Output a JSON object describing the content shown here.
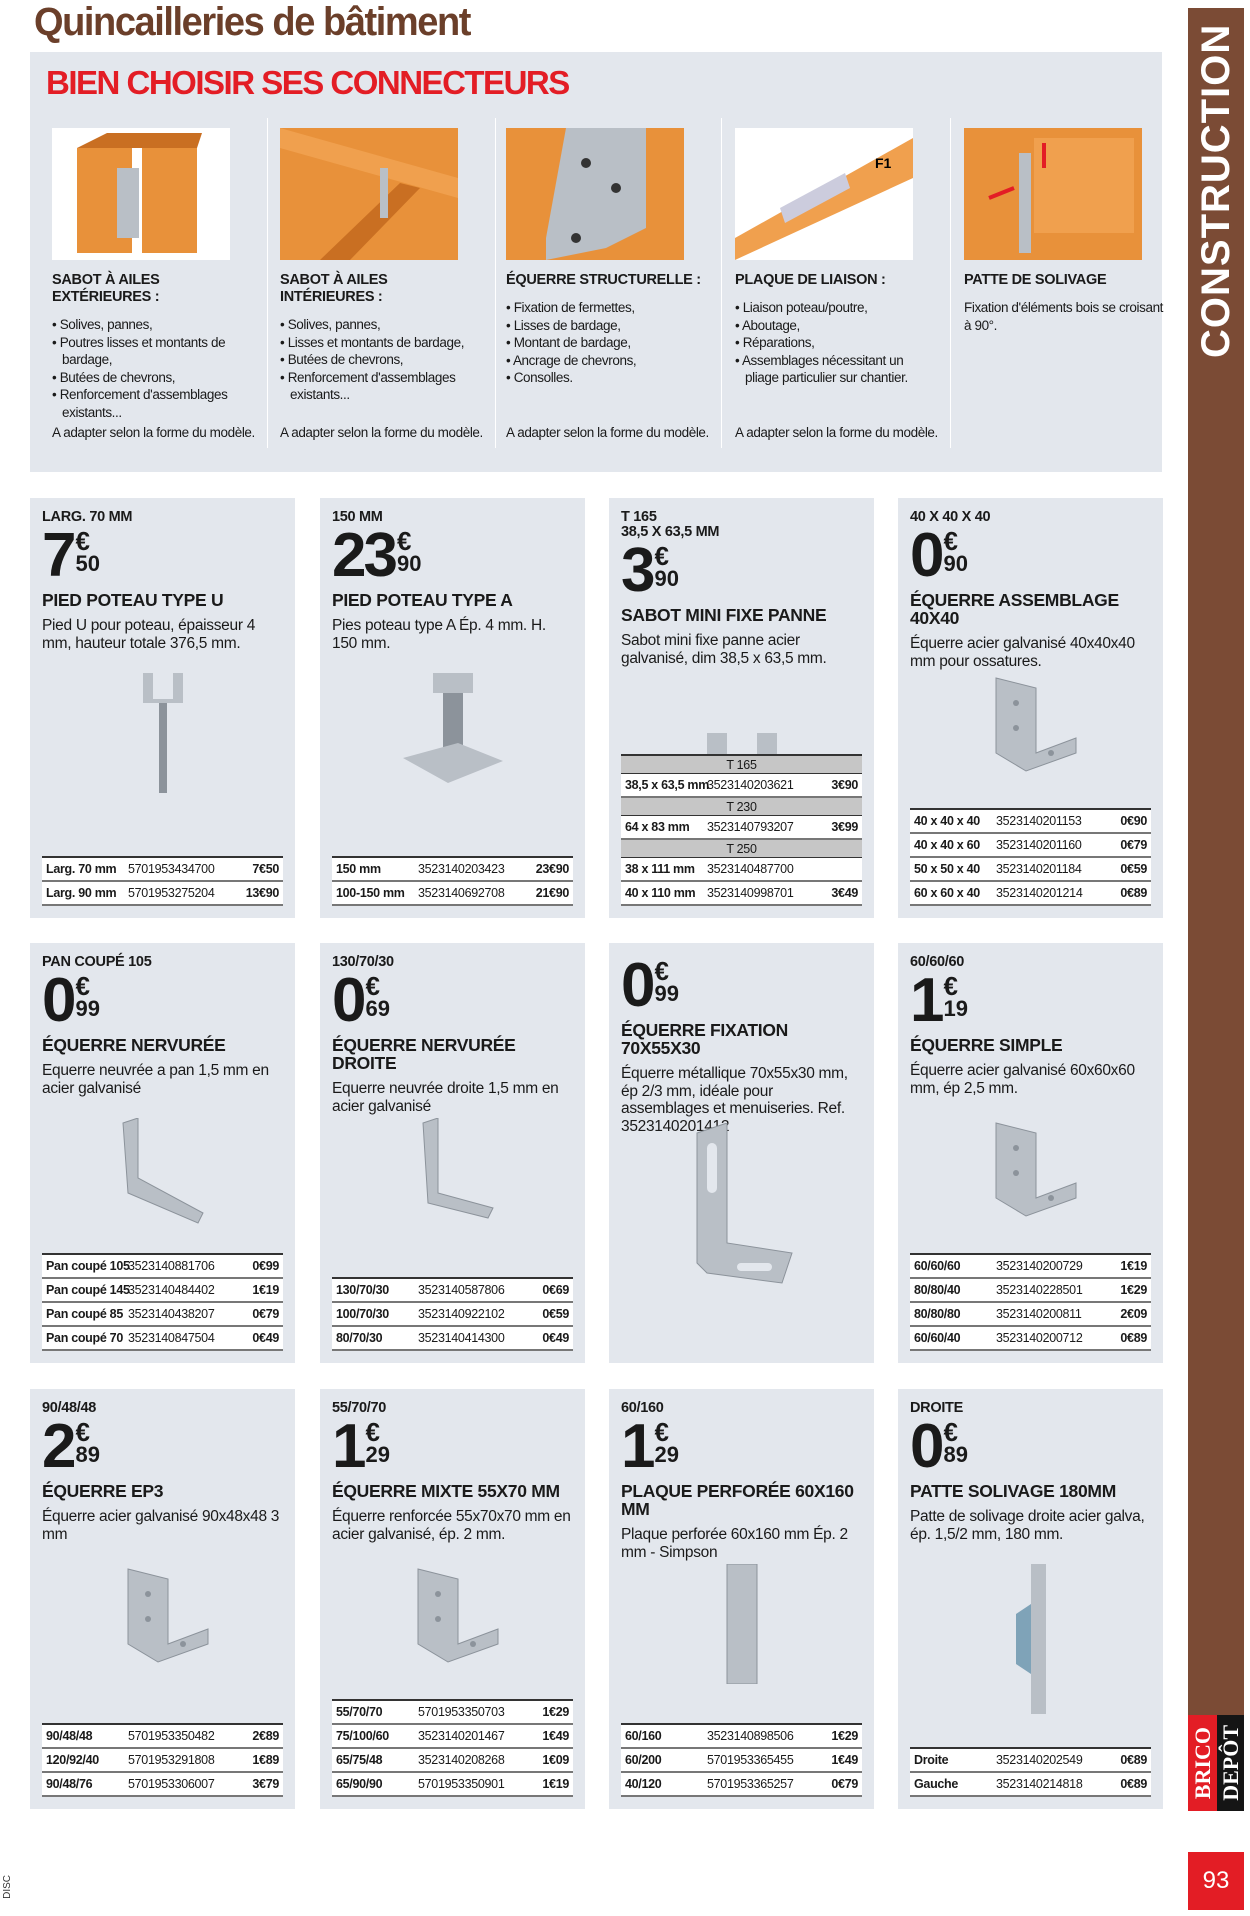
{
  "page": {
    "title": "Quincailleries de bâtiment",
    "section": "CONSTRUCTION",
    "page_number": "93",
    "footer_code": "DISC",
    "brand": {
      "top": "BRICO",
      "bottom": "DEPÔT",
      "colors": {
        "red": "#e31d25",
        "black": "#151515"
      }
    },
    "colors": {
      "brown": "#7b4b35",
      "panel": "#e3e7ed",
      "accent_red": "#e31d25"
    }
  },
  "guide": {
    "title": "BIEN CHOISIR SES CONNECTEURS",
    "columns": [
      {
        "title": "Sabot à ailes extérieures :",
        "items": [
          "Solives, pannes,",
          "Poutres lisses et montants de bardage,",
          "Butées de chevrons,",
          "Renforcement d'assemblages existants..."
        ],
        "note": "A adapter selon la forme du modèle."
      },
      {
        "title": "Sabot à ailes intérieures :",
        "items": [
          "Solives, pannes,",
          "Lisses et montants de bardage,",
          "Butées de chevrons,",
          "Renforcement d'assemblages existants..."
        ],
        "note": "A adapter selon la forme du modèle."
      },
      {
        "title": "Équerre structurelle :",
        "items": [
          "Fixation de fermettes,",
          "Lisses de bardage,",
          "Montant de bardage,",
          "Ancrage de chevrons,",
          "Consolles."
        ],
        "note": "A adapter selon la forme du modèle."
      },
      {
        "title": "Plaque de liaison :",
        "items": [
          "Liaison poteau/poutre,",
          "Aboutage,",
          "Réparations,",
          "Assemblages nécessitant un pliage particulier sur chantier."
        ],
        "note": "A adapter selon la forme du modèle.",
        "label": "F1"
      },
      {
        "title": "Patte de solivage",
        "text": "Fixation d'éléments bois se croisant à 90°."
      }
    ]
  },
  "products": [
    {
      "sub": "Larg. 70 mm",
      "int": "7",
      "cents": "50",
      "name": "Pied poteau type U",
      "desc": "Pied U pour poteau, épaisseur 4 mm, hauteur totale 376,5 mm.",
      "icon": "u-post-base",
      "rows": [
        [
          "Larg. 70 mm",
          "5701953434700",
          "7€50"
        ],
        [
          "Larg. 90 mm",
          "5701953275204",
          "13€90"
        ]
      ]
    },
    {
      "sub": "150 mm",
      "int": "23",
      "cents": "90",
      "name": "Pied poteau type A",
      "desc": "Pies poteau type A Ép. 4 mm. H. 150 mm.",
      "icon": "a-post-base",
      "rows": [
        [
          "150 mm",
          "3523140203423",
          "23€90"
        ],
        [
          "100-150 mm",
          "3523140692708",
          "21€90"
        ]
      ]
    },
    {
      "sub": "T 165\n38,5 x 63,5 mm",
      "int": "3",
      "cents": "90",
      "name": "Sabot mini fixe panne",
      "desc": "Sabot mini fixe panne acier galvanisé, dim 38,5 x 63,5 mm.",
      "icon": "joist-hanger",
      "rows": [
        {
          "header": "T 165"
        },
        [
          "38,5 x 63,5 mm",
          "3523140203621",
          "3€90"
        ],
        {
          "header": "T 230"
        },
        [
          "64 x 83 mm",
          "3523140793207",
          "3€99"
        ],
        {
          "header": "T 250"
        },
        [
          "38 x 111 mm",
          "3523140487700",
          ""
        ],
        [
          "40 x 110 mm",
          "3523140998701",
          "3€49"
        ]
      ]
    },
    {
      "sub": "40 x 40 x 40",
      "int": "0",
      "cents": "90",
      "name": "Équerre assemblage 40x40",
      "desc": "Équerre acier galvanisé 40x40x40 mm pour ossatures.",
      "icon": "angle-bracket",
      "rows": [
        [
          "40 x 40 x 40",
          "3523140201153",
          "0€90"
        ],
        [
          "40 x 40 x 60",
          "3523140201160",
          "0€79"
        ],
        [
          "50 x 50 x 40",
          "3523140201184",
          "0€59"
        ],
        [
          "60 x 60 x 40",
          "3523140201214",
          "0€89"
        ]
      ]
    },
    {
      "sub": "Pan coupé 105",
      "int": "0",
      "cents": "99",
      "name": "Équerre nervurée",
      "desc": "Equerre neuvrée a pan 1,5 mm en acier galvanisé",
      "icon": "ribbed-bracket",
      "rows": [
        [
          "Pan coupé 105",
          "3523140881706",
          "0€99"
        ],
        [
          "Pan coupé 145",
          "3523140484402",
          "1€19"
        ],
        [
          "Pan coupé 85",
          "3523140438207",
          "0€79"
        ],
        [
          "Pan coupé 70",
          "3523140847504",
          "0€49"
        ]
      ]
    },
    {
      "sub": "130/70/30",
      "int": "0",
      "cents": "69",
      "name": "Équerre nervurée droite",
      "desc": "Equerre neuvrée droite 1,5 mm en acier galvanisé",
      "icon": "ribbed-bracket-straight",
      "rows": [
        [
          "130/70/30",
          "3523140587806",
          "0€69"
        ],
        [
          "100/70/30",
          "3523140922102",
          "0€59"
        ],
        [
          "80/70/30",
          "3523140414300",
          "0€49"
        ]
      ]
    },
    {
      "sub": "",
      "int": "0",
      "cents": "99",
      "name": "Équerre fixation 70x55x30",
      "desc": "Équerre métallique 70x55x30 mm, ép 2/3 mm, idéale pour assemblages et menuiseries. Ref. 3523140201412",
      "icon": "slotted-bracket",
      "rows": []
    },
    {
      "sub": "60/60/60",
      "int": "1",
      "cents": "19",
      "name": "Équerre simple",
      "desc": "Équerre acier galvanisé 60x60x60 mm, ép 2,5 mm.",
      "icon": "angle-bracket",
      "rows": [
        [
          "60/60/60",
          "3523140200729",
          "1€19"
        ],
        [
          "80/80/40",
          "3523140228501",
          "1€29"
        ],
        [
          "80/80/80",
          "3523140200811",
          "2€09"
        ],
        [
          "60/60/40",
          "3523140200712",
          "0€89"
        ]
      ]
    },
    {
      "sub": "90/48/48",
      "int": "2",
      "cents": "89",
      "name": "Équerre EP3",
      "desc": "Équerre acier galvanisé 90x48x48 3 mm",
      "icon": "angle-bracket",
      "rows": [
        [
          "90/48/48",
          "5701953350482",
          "2€89"
        ],
        [
          "120/92/40",
          "5701953291808",
          "1€89"
        ],
        [
          "90/48/76",
          "5701953306007",
          "3€79"
        ]
      ]
    },
    {
      "sub": "55/70/70",
      "int": "1",
      "cents": "29",
      "name": "Équerre mixte 55x70 mm",
      "desc": "Équerre renforcée 55x70x70 mm en acier galvanisé, ép. 2 mm.",
      "icon": "angle-bracket",
      "rows": [
        [
          "55/70/70",
          "5701953350703",
          "1€29"
        ],
        [
          "75/100/60",
          "3523140201467",
          "1€49"
        ],
        [
          "65/75/48",
          "3523140208268",
          "1€09"
        ],
        [
          "65/90/90",
          "5701953350901",
          "1€19"
        ]
      ]
    },
    {
      "sub": "60/160",
      "int": "1",
      "cents": "29",
      "name": "Plaque perforée 60x160 mm",
      "desc": "Plaque perforée 60x160 mm Ép. 2 mm - Simpson",
      "icon": "perforated-plate",
      "rows": [
        [
          "60/160",
          "3523140898506",
          "1€29"
        ],
        [
          "60/200",
          "5701953365455",
          "1€49"
        ],
        [
          "40/120",
          "5701953365257",
          "0€79"
        ]
      ]
    },
    {
      "sub": "Droite",
      "int": "0",
      "cents": "89",
      "name": "Patte solivage 180mm",
      "desc": "Patte de solivage droite acier galva, ép. 1,5/2 mm, 180 mm.",
      "icon": "joist-strap",
      "rows": [
        [
          "Droite",
          "3523140202549",
          "0€89"
        ],
        [
          "Gauche",
          "3523140214818",
          "0€89"
        ]
      ]
    }
  ]
}
